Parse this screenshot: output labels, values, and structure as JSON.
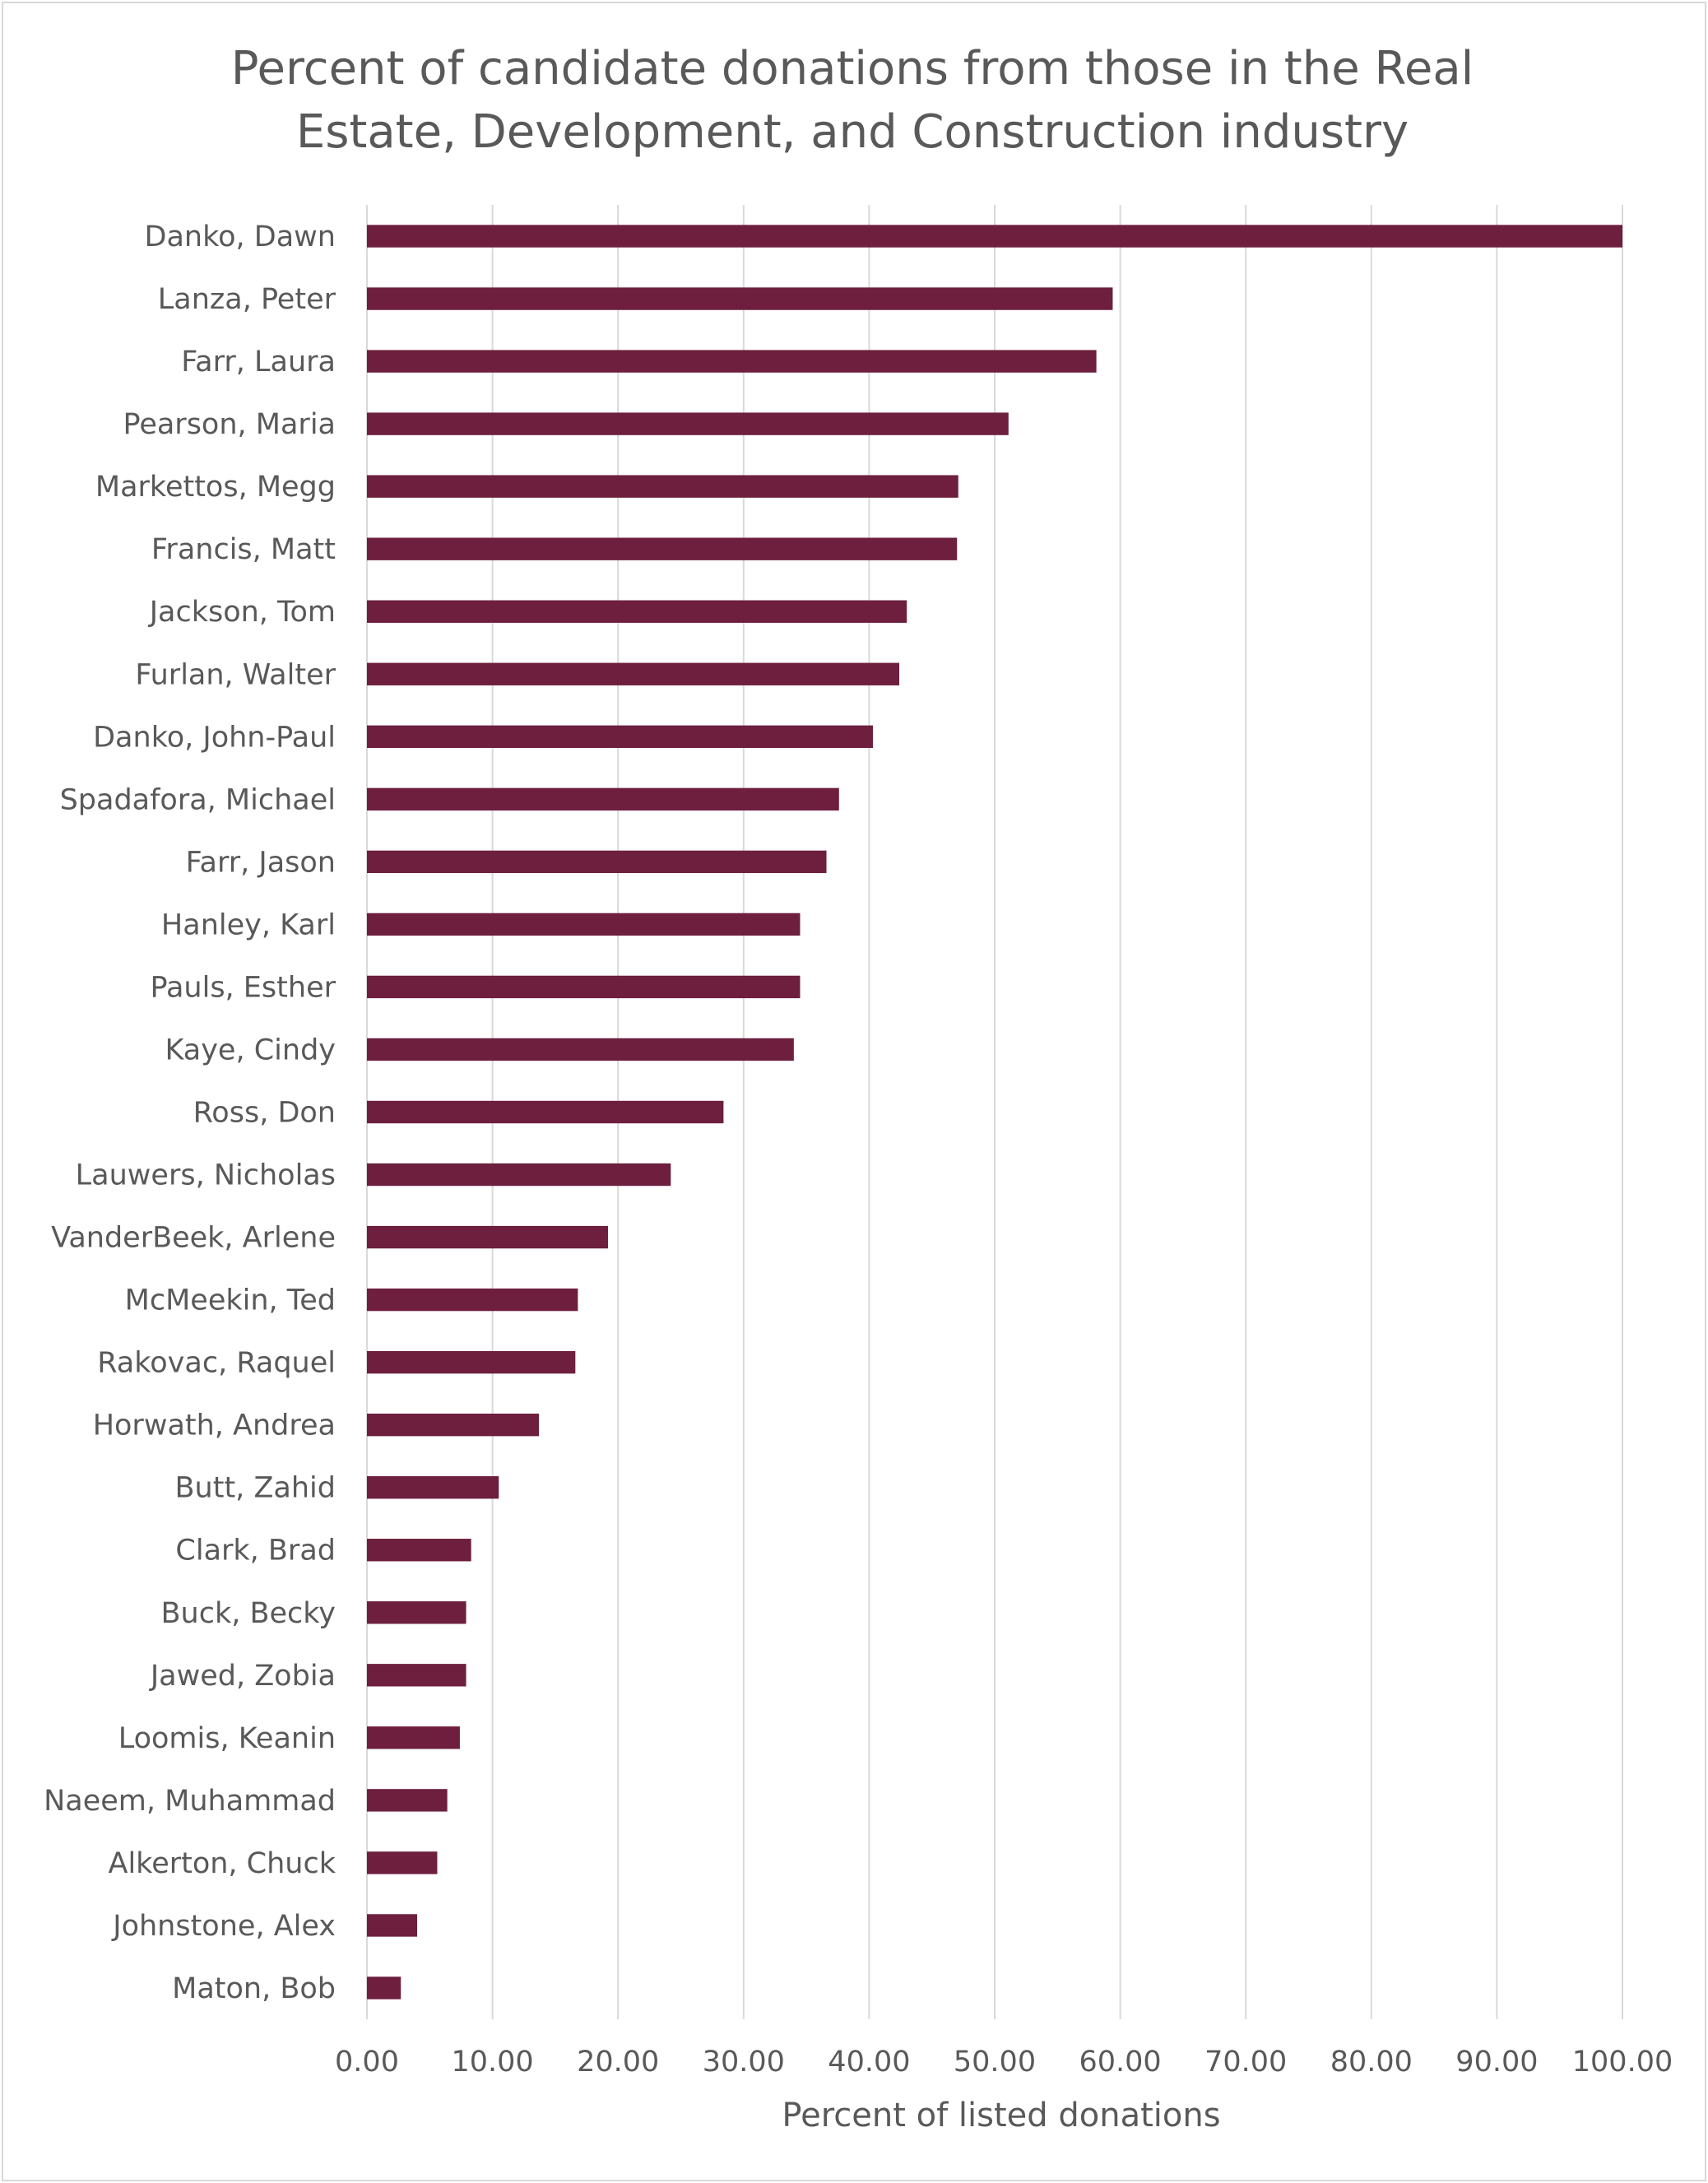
{
  "chart_data": {
    "type": "bar",
    "orientation": "horizontal",
    "title_lines": [
      "Percent of candidate donations from those in the Real",
      "Estate, Development, and Construction industry"
    ],
    "xlabel": "Percent of listed donations",
    "ylabel": "",
    "xlim": [
      0,
      100
    ],
    "x_ticks": [
      "0.00",
      "10.00",
      "20.00",
      "30.00",
      "40.00",
      "50.00",
      "60.00",
      "70.00",
      "80.00",
      "90.00",
      "100.00"
    ],
    "grid": "vertical",
    "legend": "none",
    "bar_color": "#6d1f3d",
    "grid_color": "#d9d9d9",
    "text_color": "#595959",
    "categories": [
      "Danko, Dawn",
      "Lanza, Peter",
      "Farr, Laura",
      "Pearson, Maria",
      "Markettos, Megg",
      "Francis, Matt",
      "Jackson, Tom",
      "Furlan, Walter",
      "Danko, John-Paul",
      "Spadafora, Michael",
      "Farr, Jason",
      "Hanley, Karl",
      "Pauls, Esther",
      "Kaye, Cindy",
      "Ross, Don",
      "Lauwers, Nicholas",
      "VanderBeek, Arlene",
      "McMeekin, Ted",
      "Rakovac, Raquel",
      "Horwath, Andrea",
      "Butt, Zahid",
      "Clark, Brad",
      "Buck, Becky",
      "Jawed, Zobia",
      "Loomis, Keanin",
      "Naeem, Muhammad",
      "Alkerton, Chuck",
      "Johnstone, Alex",
      "Maton, Bob"
    ],
    "values": [
      100.0,
      59.4,
      58.1,
      51.1,
      47.1,
      47.0,
      43.0,
      42.4,
      40.3,
      37.6,
      36.6,
      34.5,
      34.5,
      34.0,
      28.4,
      24.2,
      19.2,
      16.8,
      16.6,
      13.7,
      10.5,
      8.3,
      7.9,
      7.9,
      7.4,
      6.4,
      5.6,
      4.0,
      2.7
    ]
  }
}
